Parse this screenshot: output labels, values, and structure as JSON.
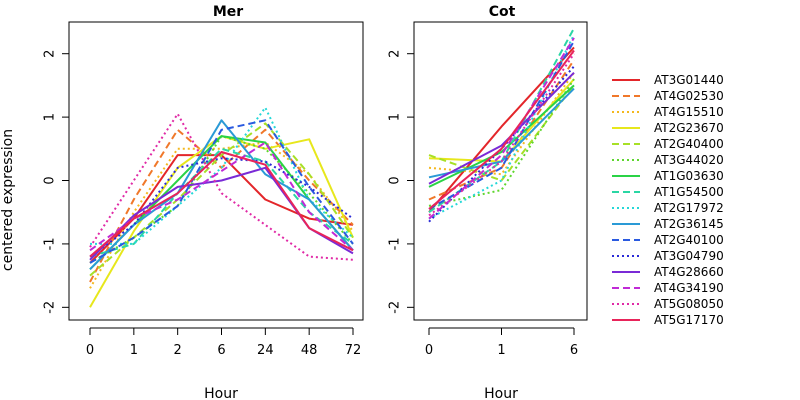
{
  "ylabel": "centered expression",
  "legend": {
    "position": "right"
  },
  "series_styles": [
    {
      "name": "AT3G01440",
      "color": "#e3262a",
      "dash": "solid"
    },
    {
      "name": "AT4G02530",
      "color": "#f0782a",
      "dash": "dashed"
    },
    {
      "name": "AT4G15510",
      "color": "#f4b81e",
      "dash": "dotted"
    },
    {
      "name": "AT2G23670",
      "color": "#e7e71c",
      "dash": "solid"
    },
    {
      "name": "AT2G40400",
      "color": "#a7e026",
      "dash": "dashed"
    },
    {
      "name": "AT3G44020",
      "color": "#5fd62e",
      "dash": "dotted"
    },
    {
      "name": "AT1G03630",
      "color": "#2ad346",
      "dash": "solid"
    },
    {
      "name": "AT1G54500",
      "color": "#2ad6a4",
      "dash": "dashed"
    },
    {
      "name": "AT2G17972",
      "color": "#25d8d8",
      "dash": "dotted"
    },
    {
      "name": "AT2G36145",
      "color": "#2a9ad6",
      "dash": "solid"
    },
    {
      "name": "AT2G40100",
      "color": "#2a5ae0",
      "dash": "dashed"
    },
    {
      "name": "AT3G04790",
      "color": "#2a2ad6",
      "dash": "dotted"
    },
    {
      "name": "AT4G28660",
      "color": "#7a2ad6",
      "dash": "solid"
    },
    {
      "name": "AT4G34190",
      "color": "#c02ad6",
      "dash": "dashed"
    },
    {
      "name": "AT5G08050",
      "color": "#e02aa6",
      "dash": "dotted"
    },
    {
      "name": "AT5G17170",
      "color": "#e8245a",
      "dash": "solid"
    }
  ],
  "chart_data": [
    {
      "type": "line",
      "title": "Mer",
      "xlabel": "Hour",
      "ylabel": "centered expression",
      "categories": [
        "0",
        "1",
        "2",
        "6",
        "24",
        "48",
        "72"
      ],
      "ylim": [
        -2.2,
        2.5
      ],
      "yticks": [
        -2,
        -1,
        0,
        1,
        2
      ],
      "series": [
        {
          "name": "AT3G01440",
          "values": [
            -1.3,
            -0.6,
            0.4,
            0.4,
            -0.3,
            -0.6,
            -0.7
          ]
        },
        {
          "name": "AT4G02530",
          "values": [
            -1.6,
            -0.3,
            0.8,
            0.2,
            0.8,
            0.0,
            -0.7
          ]
        },
        {
          "name": "AT4G15510",
          "values": [
            -1.7,
            -0.5,
            0.5,
            0.5,
            0.6,
            0.1,
            -0.8
          ]
        },
        {
          "name": "AT2G23670",
          "values": [
            -2.0,
            -0.8,
            0.2,
            0.7,
            0.5,
            0.65,
            -0.9
          ]
        },
        {
          "name": "AT2G40400",
          "values": [
            -1.5,
            -0.9,
            -0.3,
            0.4,
            0.9,
            0.1,
            -0.9
          ]
        },
        {
          "name": "AT3G44020",
          "values": [
            -1.3,
            -0.9,
            -0.4,
            0.7,
            0.5,
            -0.2,
            -1.0
          ]
        },
        {
          "name": "AT1G03630",
          "values": [
            -1.4,
            -0.7,
            0.0,
            0.7,
            0.6,
            -0.3,
            -1.1
          ]
        },
        {
          "name": "AT1G54500",
          "values": [
            -1.2,
            -1.0,
            -0.2,
            0.5,
            0.3,
            -0.5,
            -1.0
          ]
        },
        {
          "name": "AT2G17972",
          "values": [
            -1.0,
            -1.0,
            -0.4,
            0.2,
            1.15,
            -0.3,
            -0.9
          ]
        },
        {
          "name": "AT2G36145",
          "values": [
            -1.4,
            -0.7,
            -0.2,
            0.95,
            0.1,
            -0.3,
            -1.1
          ]
        },
        {
          "name": "AT2G40100",
          "values": [
            -1.3,
            -0.9,
            -0.4,
            0.8,
            0.95,
            -0.1,
            -1.0
          ]
        },
        {
          "name": "AT3G04790",
          "values": [
            -1.2,
            -0.7,
            0.2,
            0.35,
            0.3,
            -0.1,
            -0.6
          ]
        },
        {
          "name": "AT4G28660",
          "values": [
            -1.25,
            -0.55,
            -0.1,
            0.0,
            0.2,
            -0.75,
            -1.15
          ]
        },
        {
          "name": "AT4G34190",
          "values": [
            -1.1,
            -0.6,
            -0.3,
            0.15,
            0.6,
            -0.5,
            -1.1
          ]
        },
        {
          "name": "AT5G08050",
          "values": [
            -1.05,
            0.0,
            1.05,
            -0.2,
            -0.7,
            -1.2,
            -1.25
          ]
        },
        {
          "name": "AT5G17170",
          "values": [
            -1.2,
            -0.6,
            -0.2,
            0.45,
            0.25,
            -0.75,
            -1.1
          ]
        }
      ]
    },
    {
      "type": "line",
      "title": "Cot",
      "xlabel": "Hour",
      "categories": [
        "0",
        "1",
        "6"
      ],
      "ylim": [
        -2.2,
        2.5
      ],
      "yticks": [
        -2,
        -1,
        0,
        1,
        2
      ],
      "series": [
        {
          "name": "AT3G01440",
          "values": [
            -0.5,
            0.85,
            2.1
          ]
        },
        {
          "name": "AT4G02530",
          "values": [
            -0.3,
            0.2,
            1.9
          ]
        },
        {
          "name": "AT4G15510",
          "values": [
            0.2,
            0.1,
            1.7
          ]
        },
        {
          "name": "AT2G23670",
          "values": [
            0.35,
            0.3,
            1.6
          ]
        },
        {
          "name": "AT2G40400",
          "values": [
            0.4,
            0.0,
            1.5
          ]
        },
        {
          "name": "AT3G44020",
          "values": [
            -0.4,
            -0.15,
            1.6
          ]
        },
        {
          "name": "AT1G03630",
          "values": [
            -0.1,
            0.45,
            1.5
          ]
        },
        {
          "name": "AT1G54500",
          "values": [
            -0.5,
            0.3,
            2.4
          ]
        },
        {
          "name": "AT2G17972",
          "values": [
            -0.6,
            0.0,
            2.3
          ]
        },
        {
          "name": "AT2G36145",
          "values": [
            0.05,
            0.3,
            1.45
          ]
        },
        {
          "name": "AT2G40100",
          "values": [
            -0.45,
            0.2,
            2.2
          ]
        },
        {
          "name": "AT3G04790",
          "values": [
            -0.65,
            0.5,
            1.8
          ]
        },
        {
          "name": "AT4G28660",
          "values": [
            -0.05,
            0.55,
            1.7
          ]
        },
        {
          "name": "AT4G34190",
          "values": [
            -0.6,
            0.4,
            2.25
          ]
        },
        {
          "name": "AT5G08050",
          "values": [
            -0.55,
            0.3,
            2.0
          ]
        },
        {
          "name": "AT5G17170",
          "values": [
            -0.45,
            0.5,
            2.05
          ]
        }
      ]
    }
  ]
}
